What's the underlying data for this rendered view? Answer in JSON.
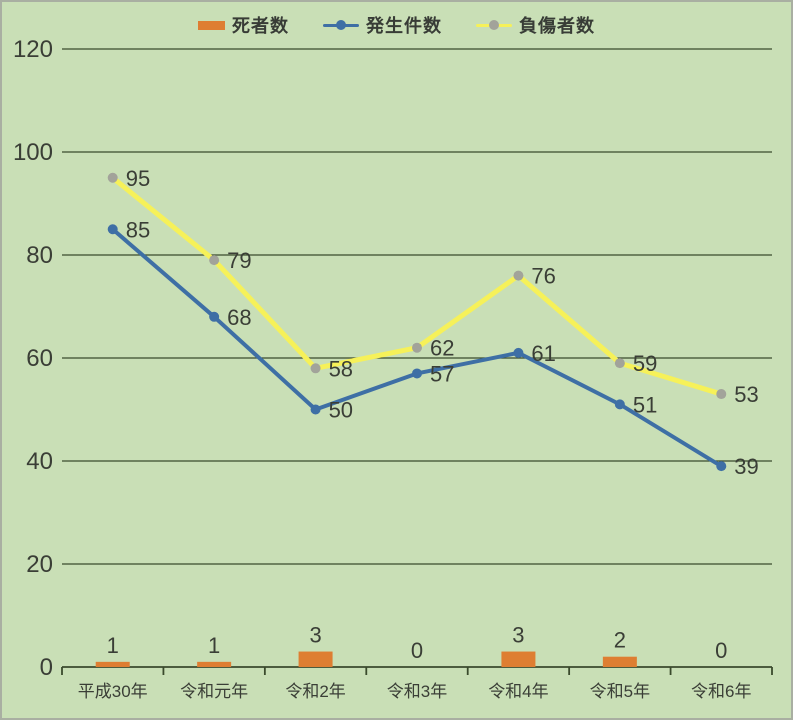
{
  "chart_data": {
    "type": "bar+line combo",
    "categories": [
      "平成30年",
      "令和元年",
      "令和2年",
      "令和3年",
      "令和4年",
      "令和5年",
      "令和6年"
    ],
    "series": [
      {
        "name": "死者数",
        "type": "bar",
        "values": [
          1,
          1,
          3,
          0,
          3,
          2,
          0
        ],
        "color": "#de7e32"
      },
      {
        "name": "発生件数",
        "type": "line",
        "values": [
          85,
          68,
          50,
          57,
          61,
          51,
          39
        ],
        "color": "#3e6fa5",
        "marker_color": "#3e6fa5"
      },
      {
        "name": "負傷者数",
        "type": "line",
        "values": [
          95,
          79,
          58,
          62,
          76,
          59,
          53
        ],
        "color": "#f6f159",
        "marker_color": "#a2a39a"
      }
    ],
    "title": "",
    "xlabel": "",
    "ylabel": "",
    "ylim": [
      0,
      120
    ],
    "ytick_step": 20,
    "yticks": [
      "0",
      "20",
      "40",
      "60",
      "80",
      "100",
      "120"
    ],
    "grid": true,
    "legend_position": "top",
    "data_labels": true
  },
  "legend": {
    "items": [
      {
        "label": "死者数"
      },
      {
        "label": "発生件数"
      },
      {
        "label": "負傷者数"
      }
    ]
  },
  "colors": {
    "background": "#c9dfb6",
    "grid": "#3a4a2c",
    "axis": "#3a4a2c",
    "text": "#3a3e36",
    "bar": "#de7e32",
    "line_blue": "#3e6fa5",
    "line_yellow": "#f6f159",
    "marker_gray": "#a2a39a"
  }
}
